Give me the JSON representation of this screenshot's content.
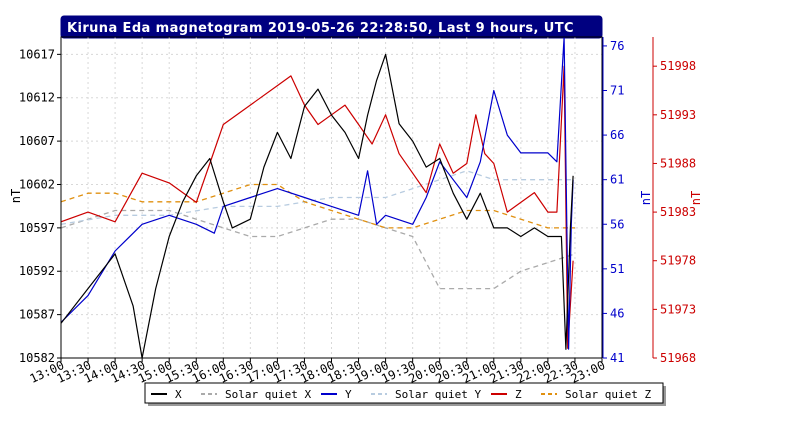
{
  "chart_data": {
    "type": "line",
    "title": "Kiruna Eda magnetogram 2019-05-26 22:28:50, Last 9 hours, UTC",
    "x_labels": [
      "13:00",
      "13:30",
      "14:00",
      "14:30",
      "15:00",
      "15:30",
      "16:00",
      "16:30",
      "17:00",
      "17:30",
      "18:00",
      "18:30",
      "19:00",
      "19:30",
      "20:00",
      "20:30",
      "21:00",
      "21:30",
      "22:00",
      "22:30",
      "23:00"
    ],
    "xlim": [
      "13:00",
      "23:00"
    ],
    "grid": true,
    "legend_position": "bottom",
    "axes": {
      "left": {
        "label": "nT",
        "ticks": [
          10582,
          10587,
          10592,
          10597,
          10602,
          10607,
          10612,
          10617
        ],
        "range": [
          10582,
          10619
        ],
        "color": "#000000"
      },
      "right1": {
        "label": "nT",
        "ticks": [
          41,
          46,
          51,
          56,
          61,
          66,
          71,
          76
        ],
        "range": [
          41,
          77
        ],
        "color": "#0000cc"
      },
      "right2": {
        "label": "nT",
        "ticks": [
          51968,
          51973,
          51978,
          51983,
          51988,
          51993,
          51998
        ],
        "range": [
          51968,
          52001
        ],
        "color": "#cc0000"
      }
    },
    "series": [
      {
        "name": "X",
        "axis": "left",
        "color": "#000000",
        "style": "solid",
        "x": [
          "13:00",
          "13:30",
          "14:00",
          "14:20",
          "14:30",
          "14:45",
          "15:00",
          "15:15",
          "15:30",
          "15:45",
          "16:00",
          "16:10",
          "16:30",
          "16:45",
          "17:00",
          "17:15",
          "17:30",
          "17:45",
          "18:00",
          "18:15",
          "18:30",
          "18:40",
          "18:50",
          "19:00",
          "19:15",
          "19:30",
          "19:45",
          "20:00",
          "20:15",
          "20:30",
          "20:45",
          "21:00",
          "21:15",
          "21:30",
          "21:45",
          "22:00",
          "22:15",
          "22:20",
          "22:25",
          "22:28"
        ],
        "y": [
          10586,
          10590,
          10594,
          10588,
          10582,
          10590,
          10596,
          10600,
          10603,
          10605,
          10600,
          10597,
          10598,
          10604,
          10608,
          10605,
          10611,
          10613,
          10610,
          10608,
          10605,
          10610,
          10614,
          10617,
          10609,
          10607,
          10604,
          10605,
          10601,
          10598,
          10601,
          10597,
          10597,
          10596,
          10597,
          10596,
          10596,
          10583,
          10597,
          10603
        ]
      },
      {
        "name": "Solar quiet X",
        "axis": "left",
        "color": "#aaaaaa",
        "style": "dashed",
        "x": [
          "13:00",
          "14:00",
          "15:00",
          "15:30",
          "16:00",
          "16:30",
          "17:00",
          "17:30",
          "18:00",
          "18:30",
          "19:00",
          "19:30",
          "20:00",
          "20:30",
          "21:00",
          "21:30",
          "22:00",
          "22:30"
        ],
        "y": [
          10597,
          10599,
          10599,
          10598,
          10597,
          10596,
          10596,
          10597,
          10598,
          10598,
          10597,
          10596,
          10590,
          10590,
          10590,
          10592,
          10593,
          10594
        ]
      },
      {
        "name": "Y",
        "axis": "right1",
        "color": "#0000cc",
        "style": "solid",
        "x": [
          "13:00",
          "13:30",
          "14:00",
          "14:30",
          "15:00",
          "15:30",
          "15:50",
          "16:00",
          "16:30",
          "17:00",
          "17:30",
          "18:00",
          "18:30",
          "18:40",
          "18:50",
          "19:00",
          "19:30",
          "19:45",
          "20:00",
          "20:15",
          "20:30",
          "20:45",
          "21:00",
          "21:15",
          "21:30",
          "22:00",
          "22:10",
          "22:18",
          "22:23",
          "22:26",
          "22:28"
        ],
        "y": [
          45,
          48,
          53,
          56,
          57,
          56,
          55,
          58,
          59,
          60,
          59,
          58,
          57,
          62,
          56,
          57,
          56,
          59,
          63,
          61,
          59,
          63,
          71,
          66,
          64,
          64,
          63,
          77,
          42,
          56,
          61
        ]
      },
      {
        "name": "Solar quiet Y",
        "axis": "right1",
        "color": "#b8cce0",
        "style": "dashed",
        "x": [
          "13:00",
          "14:00",
          "15:00",
          "16:00",
          "17:00",
          "18:00",
          "18:30",
          "19:00",
          "19:30",
          "20:00",
          "20:30",
          "21:00",
          "21:30",
          "22:00",
          "22:30"
        ],
        "y": [
          56,
          57,
          57,
          58,
          58,
          59,
          59,
          59,
          60,
          61,
          62,
          61,
          61,
          61,
          61
        ]
      },
      {
        "name": "Z",
        "axis": "right2",
        "color": "#cc0000",
        "style": "solid",
        "x": [
          "13:00",
          "13:30",
          "14:00",
          "14:30",
          "15:00",
          "15:30",
          "15:45",
          "16:00",
          "16:30",
          "17:00",
          "17:15",
          "17:30",
          "17:45",
          "18:00",
          "18:15",
          "18:30",
          "18:45",
          "19:00",
          "19:15",
          "19:30",
          "19:45",
          "20:00",
          "20:15",
          "20:30",
          "20:40",
          "20:50",
          "21:00",
          "21:15",
          "21:30",
          "21:45",
          "22:00",
          "22:10",
          "22:18",
          "22:22",
          "22:26",
          "22:28"
        ],
        "y": [
          51982,
          51983,
          51982,
          51987,
          51986,
          51984,
          51988,
          51992,
          51994,
          51996,
          51997,
          51994,
          51992,
          51993,
          51994,
          51992,
          51990,
          51993,
          51989,
          51987,
          51985,
          51990,
          51987,
          51988,
          51993,
          51989,
          51988,
          51983,
          51984,
          51985,
          51983,
          51983,
          51998,
          51969,
          51975,
          51978
        ]
      },
      {
        "name": "Solar quiet Z",
        "axis": "left",
        "color": "#e09010",
        "style": "dashed",
        "x": [
          "13:00",
          "13:30",
          "14:00",
          "14:30",
          "15:00",
          "15:30",
          "16:00",
          "16:30",
          "17:00",
          "17:30",
          "18:00",
          "18:30",
          "19:00",
          "19:30",
          "20:00",
          "20:30",
          "21:00",
          "21:30",
          "22:00",
          "22:30"
        ],
        "y": [
          10600,
          10601,
          10601,
          10600,
          10600,
          10600,
          10601,
          10602,
          10602,
          10600,
          10599,
          10598,
          10597,
          10597,
          10598,
          10599,
          10599,
          10598,
          10597,
          10597
        ]
      }
    ]
  }
}
